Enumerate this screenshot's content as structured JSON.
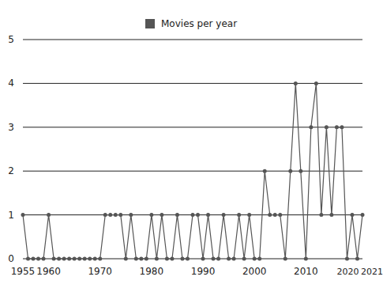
{
  "chart_data": {
    "type": "line",
    "x": [
      1955,
      1956,
      1957,
      1958,
      1959,
      1960,
      1961,
      1962,
      1963,
      1964,
      1965,
      1966,
      1967,
      1968,
      1969,
      1970,
      1971,
      1972,
      1973,
      1974,
      1975,
      1976,
      1977,
      1978,
      1979,
      1980,
      1981,
      1982,
      1983,
      1984,
      1985,
      1986,
      1987,
      1988,
      1989,
      1990,
      1991,
      1992,
      1993,
      1994,
      1995,
      1996,
      1997,
      1998,
      1999,
      2000,
      2001,
      2002,
      2003,
      2004,
      2005,
      2006,
      2007,
      2008,
      2009,
      2010,
      2011,
      2012,
      2013,
      2014,
      2015,
      2016,
      2017,
      2018,
      2019,
      2020,
      2021
    ],
    "series": [
      {
        "name": "Movies per year",
        "color": "#555555",
        "marker": "circle",
        "values": [
          1,
          0,
          0,
          0,
          0,
          1,
          0,
          0,
          0,
          0,
          0,
          0,
          0,
          0,
          0,
          0,
          1,
          1,
          1,
          1,
          0,
          1,
          0,
          0,
          0,
          1,
          0,
          1,
          0,
          0,
          1,
          0,
          0,
          1,
          1,
          0,
          1,
          0,
          0,
          1,
          0,
          0,
          1,
          0,
          1,
          0,
          0,
          2,
          1,
          1,
          1,
          0,
          2,
          4,
          2,
          0,
          3,
          4,
          1,
          3,
          1,
          3,
          3,
          0,
          1,
          0,
          1
        ]
      }
    ],
    "xlim": [
      1955,
      2021
    ],
    "xticks": [
      1955,
      1960,
      1970,
      1980,
      1990,
      2000,
      2010,
      2020,
      2021
    ],
    "ylim": [
      0,
      5
    ],
    "yticks": [
      0,
      1,
      2,
      3,
      4,
      5
    ],
    "grid": true,
    "legend": "top"
  }
}
